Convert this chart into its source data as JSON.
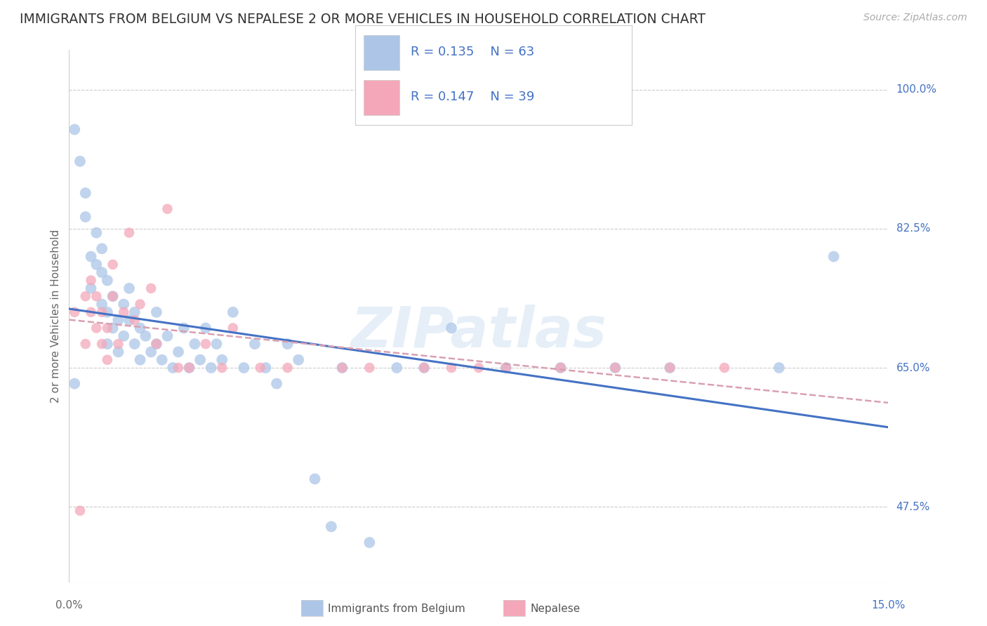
{
  "title": "IMMIGRANTS FROM BELGIUM VS NEPALESE 2 OR MORE VEHICLES IN HOUSEHOLD CORRELATION CHART",
  "source": "Source: ZipAtlas.com",
  "ylabel": "2 or more Vehicles in Household",
  "yticks": [
    "47.5%",
    "65.0%",
    "82.5%",
    "100.0%"
  ],
  "ytick_vals": [
    0.475,
    0.65,
    0.825,
    1.0
  ],
  "xmin": 0.0,
  "xmax": 0.15,
  "ymin": 0.38,
  "ymax": 1.05,
  "legend_r1": "0.135",
  "legend_n1": "63",
  "legend_r2": "0.147",
  "legend_n2": "39",
  "color_belgium": "#adc6e8",
  "color_nepalese": "#f4a7b9",
  "color_line_belgium": "#4472c4",
  "color_line_nepalese": "#d9a0b0",
  "color_text_blue": "#4472c4",
  "watermark": "ZIPatlas",
  "belgium_x": [
    0.001,
    0.001,
    0.002,
    0.003,
    0.003,
    0.004,
    0.004,
    0.005,
    0.005,
    0.006,
    0.006,
    0.006,
    0.007,
    0.007,
    0.007,
    0.008,
    0.008,
    0.009,
    0.009,
    0.01,
    0.01,
    0.011,
    0.011,
    0.012,
    0.012,
    0.013,
    0.013,
    0.014,
    0.015,
    0.016,
    0.016,
    0.017,
    0.018,
    0.019,
    0.02,
    0.021,
    0.022,
    0.023,
    0.024,
    0.025,
    0.026,
    0.027,
    0.028,
    0.03,
    0.032,
    0.034,
    0.036,
    0.038,
    0.04,
    0.042,
    0.045,
    0.048,
    0.05,
    0.055,
    0.06,
    0.065,
    0.07,
    0.08,
    0.09,
    0.1,
    0.11,
    0.13,
    0.14
  ],
  "belgium_y": [
    0.95,
    0.63,
    0.91,
    0.87,
    0.84,
    0.79,
    0.75,
    0.82,
    0.78,
    0.8,
    0.77,
    0.73,
    0.76,
    0.72,
    0.68,
    0.74,
    0.7,
    0.71,
    0.67,
    0.73,
    0.69,
    0.75,
    0.71,
    0.72,
    0.68,
    0.7,
    0.66,
    0.69,
    0.67,
    0.72,
    0.68,
    0.66,
    0.69,
    0.65,
    0.67,
    0.7,
    0.65,
    0.68,
    0.66,
    0.7,
    0.65,
    0.68,
    0.66,
    0.72,
    0.65,
    0.68,
    0.65,
    0.63,
    0.68,
    0.66,
    0.51,
    0.45,
    0.65,
    0.43,
    0.65,
    0.65,
    0.7,
    0.65,
    0.65,
    0.65,
    0.65,
    0.65,
    0.79
  ],
  "nepalese_x": [
    0.001,
    0.002,
    0.003,
    0.003,
    0.004,
    0.004,
    0.005,
    0.005,
    0.006,
    0.006,
    0.007,
    0.007,
    0.008,
    0.008,
    0.009,
    0.01,
    0.011,
    0.012,
    0.013,
    0.015,
    0.016,
    0.018,
    0.02,
    0.022,
    0.025,
    0.028,
    0.03,
    0.035,
    0.04,
    0.05,
    0.055,
    0.065,
    0.07,
    0.075,
    0.08,
    0.09,
    0.1,
    0.11,
    0.12
  ],
  "nepalese_y": [
    0.72,
    0.47,
    0.74,
    0.68,
    0.72,
    0.76,
    0.7,
    0.74,
    0.68,
    0.72,
    0.66,
    0.7,
    0.74,
    0.78,
    0.68,
    0.72,
    0.82,
    0.71,
    0.73,
    0.75,
    0.68,
    0.85,
    0.65,
    0.65,
    0.68,
    0.65,
    0.7,
    0.65,
    0.65,
    0.65,
    0.65,
    0.65,
    0.65,
    0.65,
    0.65,
    0.65,
    0.65,
    0.65,
    0.65
  ]
}
